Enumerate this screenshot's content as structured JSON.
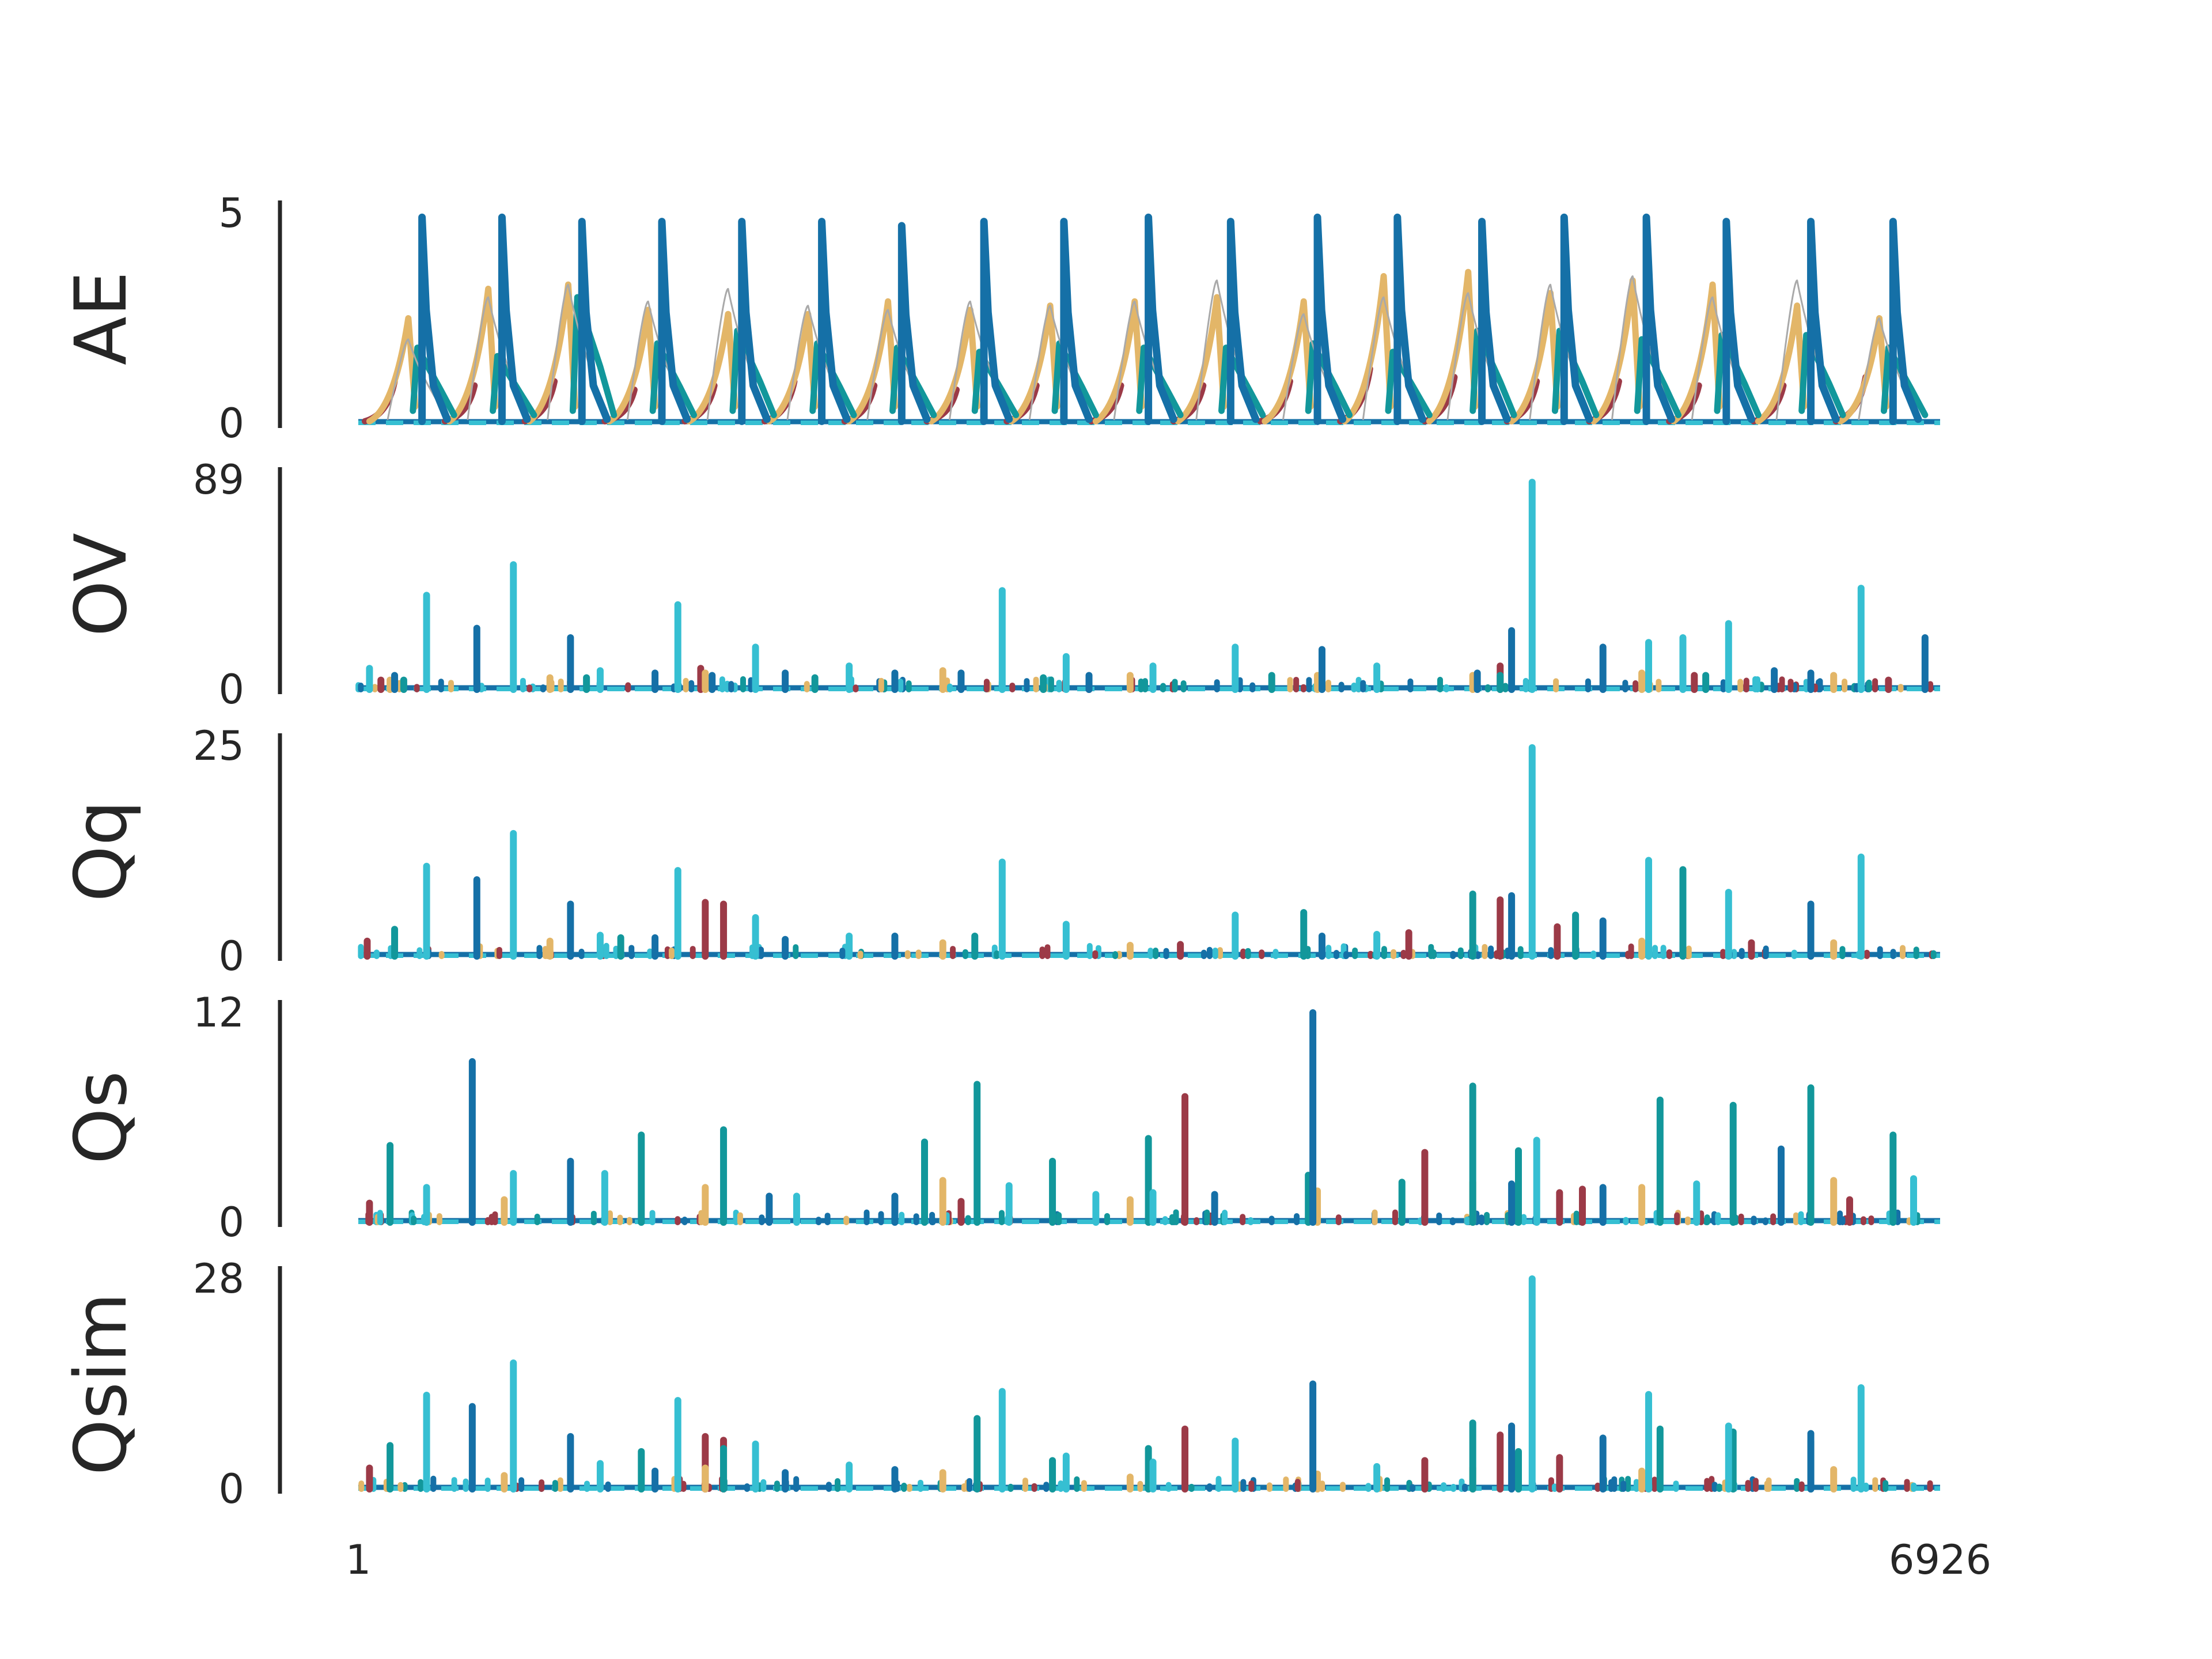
{
  "chart_data": {
    "type": "line",
    "x_range": [
      1,
      6926
    ],
    "x_tick_labels": [
      "1",
      "6926"
    ],
    "series_colors": {
      "red": "#9c3a47",
      "gold": "#e3b668",
      "teal": "#12979b",
      "blue": "#1570a7",
      "cyan": "#36bfd2",
      "gray": "#a9a9a9"
    },
    "panels": [
      {
        "ylabel": "AE",
        "ylim": [
          0,
          5
        ],
        "ytick_labels": [
          "0",
          "5"
        ],
        "peak_x": [
          220,
          570,
          920,
          1270,
          1620,
          1970,
          2320,
          2680,
          3030,
          3400,
          3760,
          4140,
          4490,
          4860,
          5220,
          5580,
          5930,
          6300,
          6660
        ],
        "peaks": {
          "blue": [
            4.9,
            4.9,
            4.8,
            4.8,
            4.8,
            4.8,
            4.7,
            4.8,
            4.8,
            4.9,
            4.8,
            4.9,
            4.9,
            4.8,
            4.9,
            4.9,
            4.8,
            4.8,
            4.8
          ],
          "gold": [
            2.5,
            3.2,
            3.3,
            2.7,
            2.6,
            2.6,
            2.9,
            2.7,
            2.8,
            2.9,
            3.0,
            2.9,
            3.5,
            3.6,
            3.1,
            3.4,
            3.3,
            2.8,
            2.5
          ],
          "teal": [
            1.8,
            1.6,
            3.0,
            1.9,
            2.2,
            1.9,
            1.8,
            1.7,
            1.9,
            1.8,
            1.8,
            1.9,
            1.7,
            2.2,
            2.2,
            2.0,
            2.1,
            2.1,
            1.8
          ],
          "red": [
            1.0,
            0.9,
            1.0,
            0.8,
            0.9,
            1.0,
            0.9,
            0.8,
            0.9,
            0.9,
            0.9,
            1.0,
            1.3,
            1.1,
            1.0,
            1.0,
            0.9,
            0.9,
            1.1
          ],
          "gray": [
            2.0,
            3.0,
            3.3,
            2.9,
            3.2,
            2.8,
            2.7,
            2.9,
            2.8,
            2.9,
            3.4,
            2.6,
            3.0,
            3.1,
            3.3,
            3.5,
            3.0,
            3.4,
            2.5
          ]
        }
      },
      {
        "ylabel": "OV",
        "ylim": [
          0,
          89
        ],
        "ytick_labels": [
          "0",
          "89"
        ],
        "spikes": {
          "cyan": [
            [
              50,
              9
            ],
            [
              300,
              40
            ],
            [
              680,
              53
            ],
            [
              1060,
              8
            ],
            [
              1400,
              36
            ],
            [
              1740,
              18
            ],
            [
              2150,
              10
            ],
            [
              2820,
              42
            ],
            [
              3100,
              14
            ],
            [
              3480,
              10
            ],
            [
              3840,
              18
            ],
            [
              4460,
              10
            ],
            [
              5140,
              88
            ],
            [
              5650,
              20
            ],
            [
              5800,
              22
            ],
            [
              6000,
              28
            ],
            [
              6580,
              43
            ]
          ],
          "blue": [
            [
              160,
              6
            ],
            [
              520,
              26
            ],
            [
              930,
              22
            ],
            [
              1300,
              7
            ],
            [
              1550,
              6
            ],
            [
              1870,
              7
            ],
            [
              2350,
              7
            ],
            [
              2640,
              7
            ],
            [
              3200,
              6
            ],
            [
              4220,
              17
            ],
            [
              4900,
              7
            ],
            [
              5050,
              25
            ],
            [
              5450,
              18
            ],
            [
              6200,
              8
            ],
            [
              6360,
              7
            ],
            [
              6860,
              22
            ]
          ],
          "teal": [
            [
              200,
              4
            ],
            [
              1000,
              5
            ],
            [
              2000,
              5
            ],
            [
              3000,
              5
            ],
            [
              4000,
              6
            ],
            [
              5000,
              6
            ],
            [
              5900,
              6
            ]
          ],
          "gold": [
            [
              140,
              4
            ],
            [
              840,
              5
            ],
            [
              1520,
              7
            ],
            [
              2560,
              8
            ],
            [
              3380,
              6
            ],
            [
              4200,
              6
            ],
            [
              4880,
              6
            ],
            [
              5620,
              7
            ],
            [
              6460,
              6
            ]
          ],
          "red": [
            [
              100,
              4
            ],
            [
              1500,
              9
            ],
            [
              3200,
              4
            ],
            [
              5000,
              10
            ],
            [
              5850,
              6
            ],
            [
              6700,
              4
            ]
          ]
        }
      },
      {
        "ylabel": "Qq",
        "ylim": [
          0,
          25
        ],
        "ytick_labels": [
          "0",
          "25"
        ],
        "spikes": {
          "cyan": [
            [
              300,
              10.7
            ],
            [
              680,
              14.6
            ],
            [
              1060,
              2.5
            ],
            [
              1400,
              10.2
            ],
            [
              1740,
              4.6
            ],
            [
              2150,
              2.4
            ],
            [
              2820,
              11.2
            ],
            [
              3100,
              3.8
            ],
            [
              3840,
              4.9
            ],
            [
              4460,
              2.6
            ],
            [
              5140,
              24.8
            ],
            [
              5650,
              11.4
            ],
            [
              6000,
              7.6
            ],
            [
              6580,
              11.8
            ]
          ],
          "blue": [
            [
              520,
              9.1
            ],
            [
              930,
              6.2
            ],
            [
              1300,
              2.2
            ],
            [
              1870,
              2.0
            ],
            [
              2350,
              2.4
            ],
            [
              4220,
              2.4
            ],
            [
              5050,
              7.2
            ],
            [
              5450,
              4.2
            ],
            [
              6360,
              6.2
            ]
          ],
          "teal": [
            [
              160,
              3.2
            ],
            [
              1150,
              2.2
            ],
            [
              2700,
              2.4
            ],
            [
              4140,
              5.2
            ],
            [
              4880,
              7.4
            ],
            [
              5330,
              4.9
            ],
            [
              5800,
              10.3
            ]
          ],
          "red": [
            [
              40,
              1.8
            ],
            [
              1520,
              6.4
            ],
            [
              1600,
              6.2
            ],
            [
              3600,
              1.4
            ],
            [
              4600,
              2.8
            ],
            [
              5000,
              6.7
            ],
            [
              5250,
              3.5
            ],
            [
              6100,
              1.6
            ]
          ],
          "gold": [
            [
              840,
              1.8
            ],
            [
              2560,
              1.6
            ],
            [
              3380,
              1.3
            ],
            [
              4880,
              1.5
            ],
            [
              5620,
              1.8
            ],
            [
              6460,
              1.6
            ]
          ]
        }
      },
      {
        "ylabel": "Qs",
        "ylim": [
          0,
          12
        ],
        "ytick_labels": [
          "0",
          "12"
        ],
        "spikes": {
          "teal": [
            [
              140,
              4.4
            ],
            [
              1240,
              5.0
            ],
            [
              1600,
              5.3
            ],
            [
              2480,
              4.6
            ],
            [
              2710,
              7.9
            ],
            [
              3040,
              3.5
            ],
            [
              3460,
              4.8
            ],
            [
              4160,
              2.7
            ],
            [
              4570,
              2.3
            ],
            [
              4880,
              7.8
            ],
            [
              5080,
              4.1
            ],
            [
              5700,
              7.0
            ],
            [
              6020,
              6.7
            ],
            [
              6360,
              7.7
            ],
            [
              6720,
              5.0
            ]
          ],
          "blue": [
            [
              500,
              9.2
            ],
            [
              930,
              3.5
            ],
            [
              1800,
              1.5
            ],
            [
              2350,
              1.5
            ],
            [
              3750,
              1.6
            ],
            [
              4180,
              12.0
            ],
            [
              5050,
              2.2
            ],
            [
              5450,
              2.0
            ],
            [
              6230,
              4.2
            ]
          ],
          "red": [
            [
              50,
              1.1
            ],
            [
              2640,
              1.2
            ],
            [
              3620,
              7.2
            ],
            [
              4670,
              4.0
            ],
            [
              5260,
              1.7
            ],
            [
              5360,
              1.9
            ],
            [
              6530,
              1.3
            ]
          ],
          "cyan": [
            [
              300,
              2.0
            ],
            [
              680,
              2.8
            ],
            [
              1080,
              2.8
            ],
            [
              1920,
              1.5
            ],
            [
              2850,
              2.1
            ],
            [
              3230,
              1.6
            ],
            [
              3480,
              1.7
            ],
            [
              5160,
              4.7
            ],
            [
              5860,
              2.2
            ],
            [
              6810,
              2.5
            ]
          ],
          "gold": [
            [
              640,
              1.3
            ],
            [
              1520,
              2.0
            ],
            [
              2560,
              2.4
            ],
            [
              3380,
              1.3
            ],
            [
              4200,
              1.8
            ],
            [
              4880,
              2.3
            ],
            [
              5620,
              2.0
            ],
            [
              6460,
              2.4
            ]
          ]
        }
      },
      {
        "ylabel": "Qsim",
        "ylim": [
          0,
          28
        ],
        "ytick_labels": [
          "0",
          "28"
        ],
        "spikes": {
          "cyan": [
            [
              300,
              12.5
            ],
            [
              680,
              16.8
            ],
            [
              1060,
              3.4
            ],
            [
              1400,
              11.8
            ],
            [
              1740,
              6.0
            ],
            [
              2150,
              3.2
            ],
            [
              2820,
              13.0
            ],
            [
              3100,
              4.4
            ],
            [
              3480,
              3.6
            ],
            [
              3840,
              6.4
            ],
            [
              4460,
              3.0
            ],
            [
              5140,
              28.0
            ],
            [
              5650,
              12.6
            ],
            [
              6000,
              8.4
            ],
            [
              6580,
              13.5
            ]
          ],
          "blue": [
            [
              500,
              11.0
            ],
            [
              930,
              7.0
            ],
            [
              1300,
              2.4
            ],
            [
              1870,
              2.2
            ],
            [
              2350,
              2.6
            ],
            [
              4180,
              14.0
            ],
            [
              5050,
              8.4
            ],
            [
              5450,
              6.8
            ],
            [
              6360,
              7.4
            ]
          ],
          "teal": [
            [
              140,
              5.8
            ],
            [
              1240,
              5.0
            ],
            [
              1600,
              5.4
            ],
            [
              2710,
              9.4
            ],
            [
              3040,
              3.8
            ],
            [
              3460,
              5.4
            ],
            [
              4880,
              8.8
            ],
            [
              5080,
              5.0
            ],
            [
              5700,
              8.0
            ],
            [
              6020,
              7.6
            ],
            [
              6360,
              6.4
            ]
          ],
          "red": [
            [
              50,
              2.8
            ],
            [
              1520,
              7.0
            ],
            [
              1600,
              6.5
            ],
            [
              3620,
              8.0
            ],
            [
              4670,
              3.8
            ],
            [
              5000,
              7.2
            ],
            [
              5260,
              4.2
            ]
          ],
          "gold": [
            [
              640,
              1.8
            ],
            [
              1520,
              2.8
            ],
            [
              2560,
              2.2
            ],
            [
              3380,
              1.6
            ],
            [
              4200,
              2.0
            ],
            [
              4880,
              2.8
            ],
            [
              5620,
              2.4
            ],
            [
              6460,
              2.6
            ]
          ]
        }
      }
    ]
  }
}
